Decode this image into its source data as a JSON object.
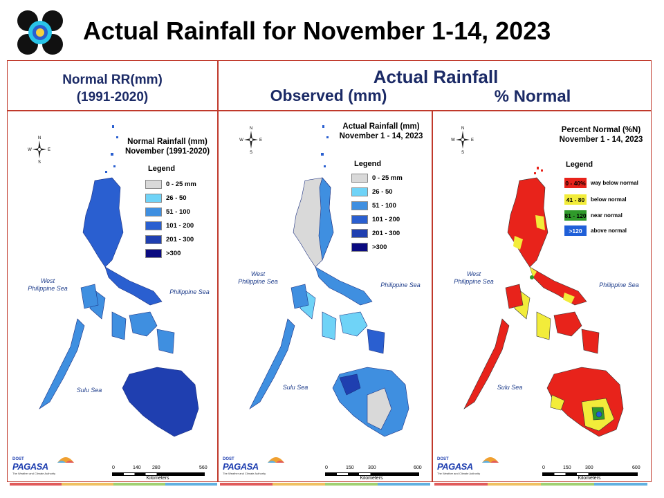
{
  "title": "Actual Rainfall for November 1-14, 2023",
  "headers": {
    "normal_line1": "Normal RR(mm)",
    "normal_line2": "(1991-2020)",
    "actual": "Actual Rainfall",
    "observed": "Observed (mm)",
    "percent": "% Normal"
  },
  "panels": [
    {
      "title_line1": "Normal Rainfall (mm)",
      "title_line2": "November (1991-2020)",
      "legend_title": "Legend",
      "legend": [
        {
          "label": "0 - 25 mm",
          "color": "#d9d9d9"
        },
        {
          "label": "26 - 50",
          "color": "#6fd3f7"
        },
        {
          "label": "51 - 100",
          "color": "#3f8fe0"
        },
        {
          "label": "101 - 200",
          "color": "#2a5fd0"
        },
        {
          "label": "201 - 300",
          "color": "#1f3fb0"
        },
        {
          "label": ">300",
          "color": "#0a0a80"
        }
      ],
      "scale": [
        "0",
        "140",
        "280",
        "560"
      ],
      "scale_unit": "Kilometers"
    },
    {
      "title_line1": "Actual Rainfall (mm)",
      "title_line2": "November 1 - 14, 2023",
      "legend_title": "Legend",
      "legend": [
        {
          "label": "0 - 25 mm",
          "color": "#d9d9d9"
        },
        {
          "label": "26 - 50",
          "color": "#6fd3f7"
        },
        {
          "label": "51 - 100",
          "color": "#3f8fe0"
        },
        {
          "label": "101 - 200",
          "color": "#2a5fd0"
        },
        {
          "label": "201 - 300",
          "color": "#1f3fb0"
        },
        {
          "label": ">300",
          "color": "#0a0a80"
        }
      ],
      "scale": [
        "0",
        "150",
        "300",
        "600"
      ],
      "scale_unit": "Kilometers"
    },
    {
      "title_line1": "Percent Normal (%N)",
      "title_line2": "November 1 - 14, 2023",
      "legend_title": "Legend",
      "legend": [
        {
          "code": "0 - 40%",
          "label": "way below normal",
          "color": "#e8231b",
          "text_color": "#000000"
        },
        {
          "code": "41 - 80",
          "label": "below normal",
          "color": "#f2ec3a",
          "text_color": "#000000"
        },
        {
          "code": "81 - 120",
          "label": "near normal",
          "color": "#2f9a2a",
          "text_color": "#000000"
        },
        {
          "code": ">120",
          "label": "above normal",
          "color": "#1f5fd8",
          "text_color": "#ffffff"
        }
      ],
      "scale": [
        "0",
        "150",
        "300",
        "600"
      ],
      "scale_unit": "Kilometers"
    }
  ],
  "seas": {
    "west_line1": "West",
    "west_line2": "Philippine Sea",
    "east": "Philippine Sea",
    "sulu": "Sulu Sea"
  },
  "compass_letters": {
    "n": "N",
    "s": "S",
    "e": "E",
    "w": "W"
  },
  "brand": {
    "line1": "DOST",
    "line2": "PAGASA",
    "tag": "The Weather and Climate Authority"
  },
  "strip_colors": [
    "#e15a5a",
    "#f0c060",
    "#a0d070",
    "#60b0e0"
  ]
}
